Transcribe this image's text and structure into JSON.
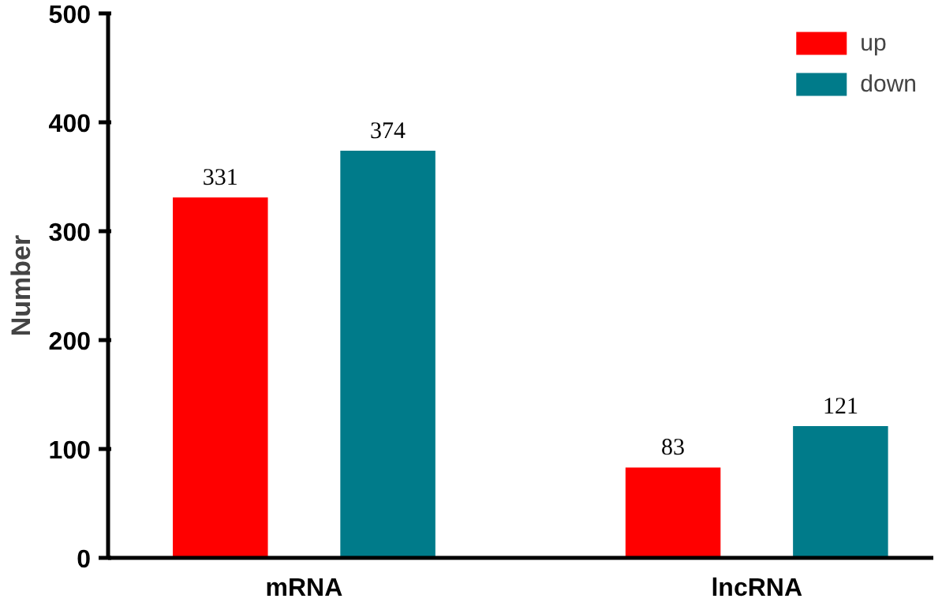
{
  "chart_data": {
    "type": "bar",
    "ylabel": "Number",
    "categories": [
      "mRNA",
      "lncRNA"
    ],
    "series": [
      {
        "name": "up",
        "color": "#ff0000",
        "values": [
          331,
          83
        ]
      },
      {
        "name": "down",
        "color": "#007b8a",
        "values": [
          374,
          121
        ]
      }
    ],
    "ylim": [
      0,
      500
    ],
    "yticks": [
      0,
      100,
      200,
      300,
      400,
      500
    ],
    "grid": false,
    "legend": "top right",
    "data_labels": true
  }
}
